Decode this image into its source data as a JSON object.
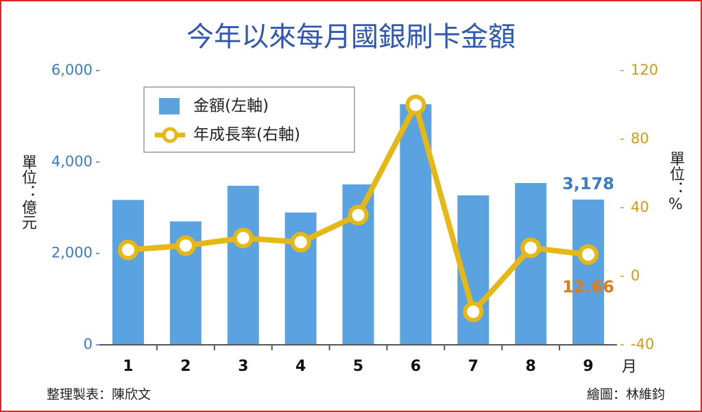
{
  "chart_data": {
    "type": "bar_line",
    "title": "今年以來每月國銀刷卡金額",
    "y_label": "單位：億元",
    "y2_label": "單位：%",
    "x_label": "月",
    "source": "整理製表：陳欣文",
    "credit": "繪圖：林維鈞",
    "categories": [
      "1",
      "2",
      "3",
      "4",
      "5",
      "6",
      "7",
      "8",
      "9"
    ],
    "series": [
      {
        "name": "金額(左軸)",
        "color": "#5ba3e0",
        "values": [
          3170,
          2700,
          3480,
          2895,
          3510,
          5265,
          3270,
          3540,
          3178
        ],
        "value_labels": [
          null,
          null,
          null,
          null,
          null,
          null,
          null,
          null,
          "3,178"
        ]
      },
      {
        "name": "年成長率(右軸)",
        "color": "#e5b815",
        "axis": "y2",
        "values": [
          15.4,
          17.9,
          22.3,
          19.9,
          35.7,
          100,
          -20.7,
          16.6,
          12.66
        ],
        "value_labels": [
          null,
          null,
          null,
          null,
          null,
          null,
          null,
          null,
          "12.66"
        ]
      }
    ],
    "ylim": [
      0,
      6000
    ],
    "yticks": [
      0,
      {
        "value": 2000,
        "label": "2,000"
      },
      {
        "value": 4000,
        "label": "4,000"
      },
      {
        "value": 6000,
        "label": "6,000"
      }
    ],
    "y2lim": [
      -40,
      120
    ],
    "y2ticks": [
      -40,
      0,
      40,
      80,
      120
    ]
  }
}
